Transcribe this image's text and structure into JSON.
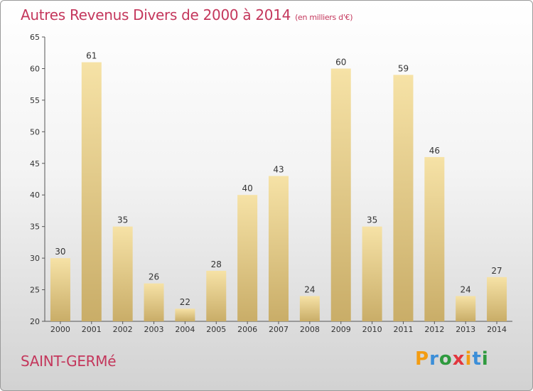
{
  "header": {
    "title": "Autres Revenus Divers de 2000 à 2014",
    "unit": "(en milliers d'€)"
  },
  "footer": {
    "place": "SAINT-GERMé",
    "brand": "Proxiti"
  },
  "colors": {
    "title": "#c4375c",
    "bar_light": "#f6e2a6",
    "bar_dark": "#c9ad68",
    "brand_letters": [
      "#f39c12",
      "#3b8ed8",
      "#2e9a3e",
      "#e2363d",
      "#f39c12",
      "#3b8ed8",
      "#2e9a3e"
    ]
  },
  "chart_data": {
    "type": "bar",
    "title": "Autres Revenus Divers de 2000 à 2014",
    "subtitle": "(en milliers d'€)",
    "categories": [
      "2000",
      "2001",
      "2002",
      "2003",
      "2004",
      "2005",
      "2006",
      "2007",
      "2008",
      "2009",
      "2010",
      "2011",
      "2012",
      "2013",
      "2014"
    ],
    "values": [
      30,
      61,
      35,
      26,
      22,
      28,
      40,
      43,
      24,
      60,
      35,
      59,
      46,
      24,
      27
    ],
    "ylim": [
      20,
      65
    ],
    "yticks": [
      20,
      25,
      30,
      35,
      40,
      45,
      50,
      55,
      60,
      65
    ],
    "grid": false,
    "data_labels": true
  }
}
